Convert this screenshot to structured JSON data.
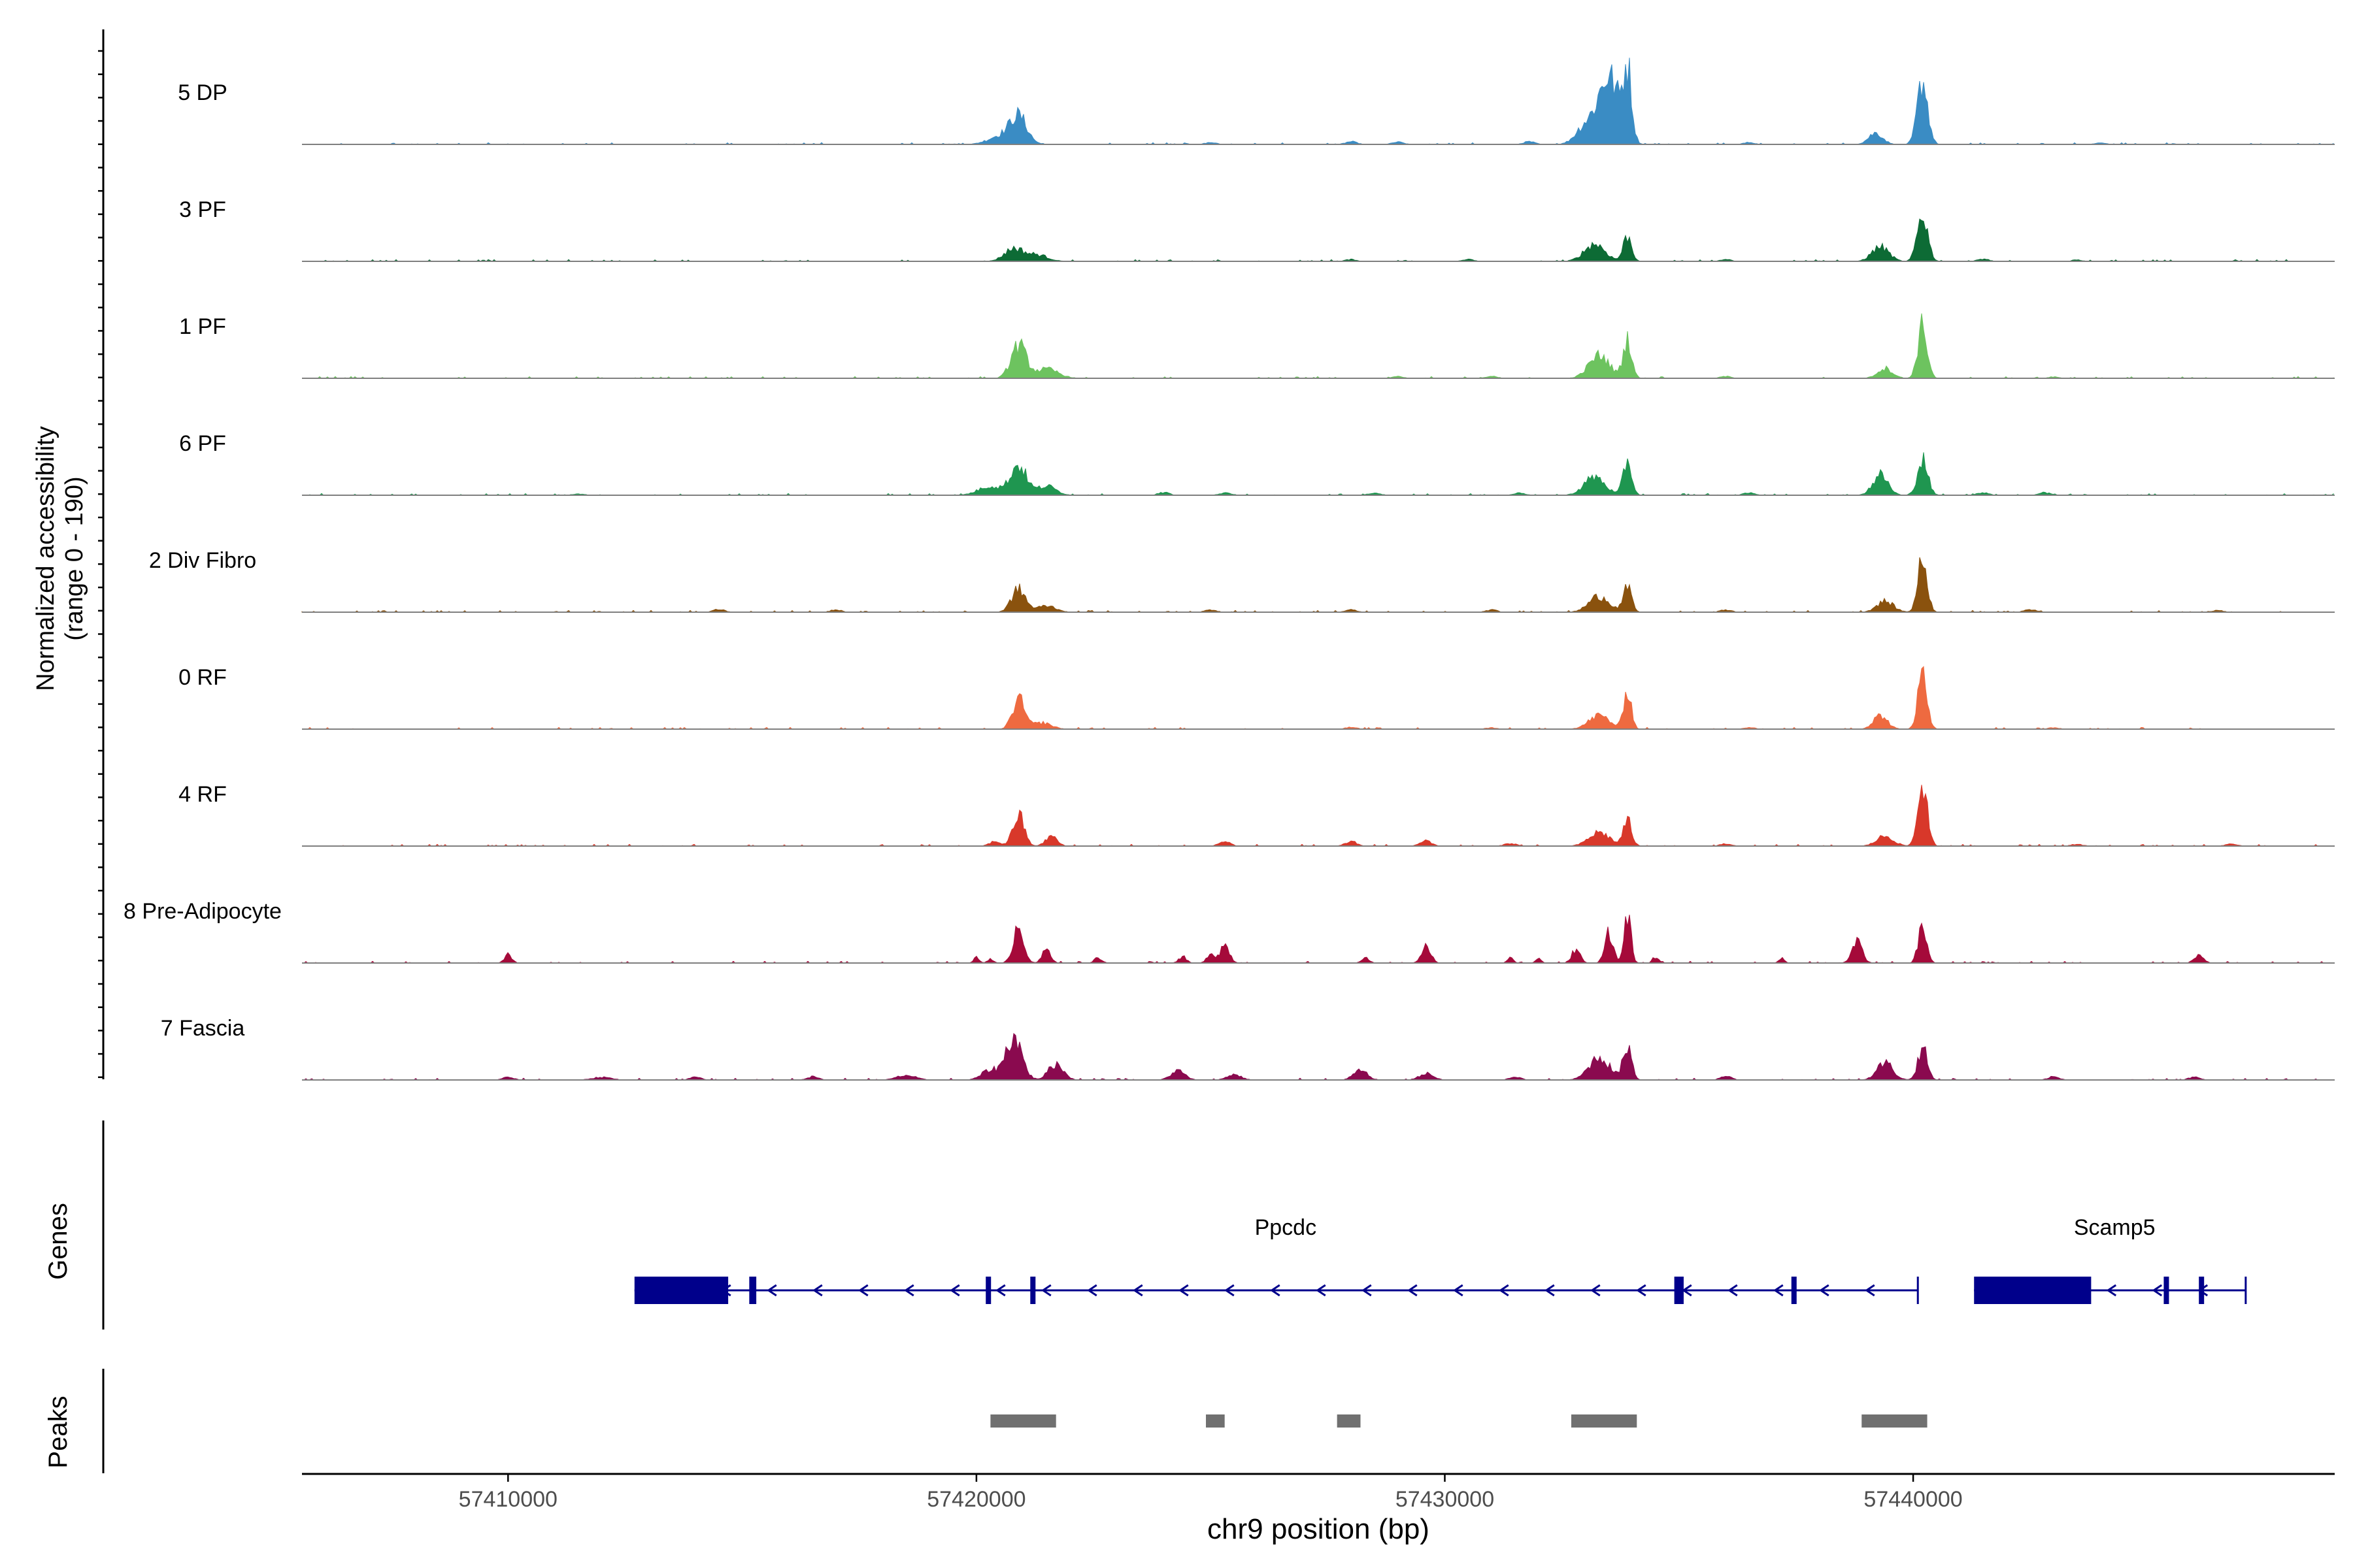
{
  "chart_data": {
    "type": "area",
    "title": "",
    "ylabel_line1": "Normalized accessibility",
    "ylabel_line2": "(range 0 - 190)",
    "genes_label": "Genes",
    "peaks_label": "Peaks",
    "xlabel": "chr9 position (bp)",
    "xlim": [
      57405600,
      57449000
    ],
    "x_ticks": [
      57410000,
      57420000,
      57430000,
      57440000
    ],
    "x_tick_labels": [
      "57410000",
      "57420000",
      "57430000",
      "57440000"
    ],
    "y_range": [
      0,
      190
    ],
    "tracks": [
      {
        "name": "5 DP",
        "color": "#3a8cc4",
        "peaks": [
          [
            57420900,
            60,
            180
          ],
          [
            57420500,
            18,
            250
          ],
          [
            57433500,
            150,
            220
          ],
          [
            57433900,
            150,
            90
          ],
          [
            57433000,
            40,
            200
          ],
          [
            57439200,
            25,
            150
          ],
          [
            57440200,
            140,
            110
          ]
        ],
        "bumps": [
          [
            57428000,
            6
          ],
          [
            57429000,
            5
          ],
          [
            57431800,
            6
          ],
          [
            57425000,
            4
          ],
          [
            57436500,
            4
          ],
          [
            57444000,
            3
          ]
        ]
      },
      {
        "name": "3 PF",
        "color": "#0d6b35",
        "peaks": [
          [
            57420800,
            28,
            200
          ],
          [
            57421300,
            14,
            220
          ],
          [
            57433200,
            38,
            220
          ],
          [
            57433900,
            55,
            90
          ],
          [
            57439300,
            32,
            180
          ],
          [
            57440200,
            105,
            110
          ]
        ],
        "bumps": [
          [
            57428000,
            4
          ],
          [
            57430500,
            4
          ],
          [
            57436000,
            4
          ],
          [
            57441500,
            5
          ],
          [
            57443500,
            3
          ]
        ]
      },
      {
        "name": "1 PF",
        "color": "#6dc35f",
        "peaks": [
          [
            57420900,
            72,
            160
          ],
          [
            57421500,
            20,
            250
          ],
          [
            57433300,
            50,
            220
          ],
          [
            57433900,
            85,
            90
          ],
          [
            57439400,
            22,
            160
          ],
          [
            57440200,
            115,
            100
          ]
        ],
        "bumps": [
          [
            57429000,
            4
          ],
          [
            57431000,
            4
          ],
          [
            57436000,
            4
          ],
          [
            57443000,
            3
          ]
        ]
      },
      {
        "name": "6 PF",
        "color": "#1f9650",
        "peaks": [
          [
            57420900,
            65,
            170
          ],
          [
            57420300,
            20,
            250
          ],
          [
            57421500,
            20,
            200
          ],
          [
            57433200,
            40,
            220
          ],
          [
            57433900,
            75,
            90
          ],
          [
            57439300,
            45,
            160
          ],
          [
            57440200,
            78,
            110
          ]
        ],
        "bumps": [
          [
            57424000,
            6
          ],
          [
            57425300,
            5
          ],
          [
            57428500,
            5
          ],
          [
            57431600,
            5
          ],
          [
            57436500,
            5
          ],
          [
            57441500,
            6
          ],
          [
            57442800,
            6
          ],
          [
            57411500,
            3
          ]
        ]
      },
      {
        "name": "2 Div Fibro",
        "color": "#8a520e",
        "peaks": [
          [
            57420900,
            50,
            150
          ],
          [
            57421500,
            14,
            200
          ],
          [
            57433300,
            35,
            220
          ],
          [
            57433900,
            52,
            90
          ],
          [
            57439400,
            24,
            180
          ],
          [
            57440200,
            115,
            100
          ]
        ],
        "bumps": [
          [
            57414500,
            6
          ],
          [
            57417000,
            5
          ],
          [
            57425000,
            5
          ],
          [
            57428000,
            5
          ],
          [
            57431000,
            5
          ],
          [
            57436000,
            5
          ],
          [
            57442500,
            6
          ],
          [
            57446500,
            4
          ]
        ]
      },
      {
        "name": "0 RF",
        "color": "#ee6a40",
        "peaks": [
          [
            57420900,
            65,
            130
          ],
          [
            57421400,
            14,
            200
          ],
          [
            57433300,
            30,
            220
          ],
          [
            57433900,
            90,
            80
          ],
          [
            57439300,
            30,
            150
          ],
          [
            57440200,
            120,
            100
          ]
        ],
        "bumps": [
          [
            57428000,
            4
          ],
          [
            57431000,
            3
          ],
          [
            57436500,
            4
          ],
          [
            57443000,
            3
          ]
        ]
      },
      {
        "name": "4 RF",
        "color": "#d8382a",
        "peaks": [
          [
            57420900,
            68,
            120
          ],
          [
            57421600,
            22,
            120
          ],
          [
            57420400,
            10,
            120
          ],
          [
            57433300,
            30,
            220
          ],
          [
            57433900,
            55,
            90
          ],
          [
            57439400,
            22,
            180
          ],
          [
            57440200,
            140,
            100
          ]
        ],
        "bumps": [
          [
            57425300,
            10
          ],
          [
            57428000,
            10
          ],
          [
            57429600,
            12
          ],
          [
            57431400,
            6
          ],
          [
            57436000,
            5
          ],
          [
            57443500,
            4
          ],
          [
            57446800,
            5
          ]
        ]
      },
      {
        "name": "8 Pre-Adipocyte",
        "color": "#a50a3a",
        "peaks": [
          [
            57420000,
            12,
            60
          ],
          [
            57420300,
            10,
            60
          ],
          [
            57420900,
            85,
            110
          ],
          [
            57421500,
            30,
            90
          ],
          [
            57422600,
            12,
            80
          ],
          [
            57424400,
            14,
            80
          ],
          [
            57425300,
            40,
            100
          ],
          [
            57425000,
            22,
            80
          ],
          [
            57428300,
            12,
            80
          ],
          [
            57429600,
            36,
            100
          ],
          [
            57431400,
            14,
            60
          ],
          [
            57432000,
            10,
            60
          ],
          [
            57432800,
            30,
            90
          ],
          [
            57433500,
            70,
            90
          ],
          [
            57433900,
            112,
            70
          ],
          [
            57434500,
            14,
            60
          ],
          [
            57437200,
            10,
            60
          ],
          [
            57438800,
            45,
            110
          ],
          [
            57440200,
            80,
            90
          ],
          [
            57410000,
            18,
            80
          ],
          [
            57446100,
            16,
            100
          ]
        ],
        "bumps": []
      },
      {
        "name": "7 Fascia",
        "color": "#8a0a4f",
        "peaks": [
          [
            57420800,
            95,
            170
          ],
          [
            57420300,
            22,
            180
          ],
          [
            57421700,
            35,
            160
          ],
          [
            57424300,
            20,
            150
          ],
          [
            57425500,
            12,
            150
          ],
          [
            57428200,
            20,
            150
          ],
          [
            57429600,
            14,
            150
          ],
          [
            57433300,
            50,
            220
          ],
          [
            57433900,
            78,
            90
          ],
          [
            57439400,
            38,
            170
          ],
          [
            57440200,
            70,
            100
          ],
          [
            57418500,
            10,
            200
          ],
          [
            57412000,
            6,
            200
          ]
        ],
        "bumps": [
          [
            57410000,
            6
          ],
          [
            57414000,
            6
          ],
          [
            57416500,
            7
          ],
          [
            57431500,
            7
          ],
          [
            57436000,
            8
          ],
          [
            57443000,
            7
          ],
          [
            57446000,
            6
          ]
        ]
      }
    ],
    "genes": [
      {
        "name": "Ppcdc",
        "label_x": 57426600,
        "start": 57412700,
        "end": 57440100,
        "strand": "-",
        "thick": [
          [
            57412700,
            57414700
          ]
        ],
        "exons": [
          [
            57415150,
            57415300
          ],
          [
            57420200,
            57420300
          ],
          [
            57421150,
            57421250
          ],
          [
            57434900,
            57435100
          ],
          [
            57437400,
            57437450
          ]
        ]
      },
      {
        "name": "Scamp5",
        "label_x": 57444300,
        "start": 57441300,
        "end": 57447100,
        "strand": "-",
        "thick": [
          [
            57441300,
            57443800
          ]
        ],
        "exons": [
          [
            57445350,
            57445450
          ],
          [
            57446100,
            57446200
          ]
        ]
      }
    ],
    "peak_regions": [
      [
        57420300,
        57421700
      ],
      [
        57424900,
        57425300
      ],
      [
        57427700,
        57428200
      ],
      [
        57432700,
        57434100
      ],
      [
        57438900,
        57440300
      ]
    ]
  }
}
